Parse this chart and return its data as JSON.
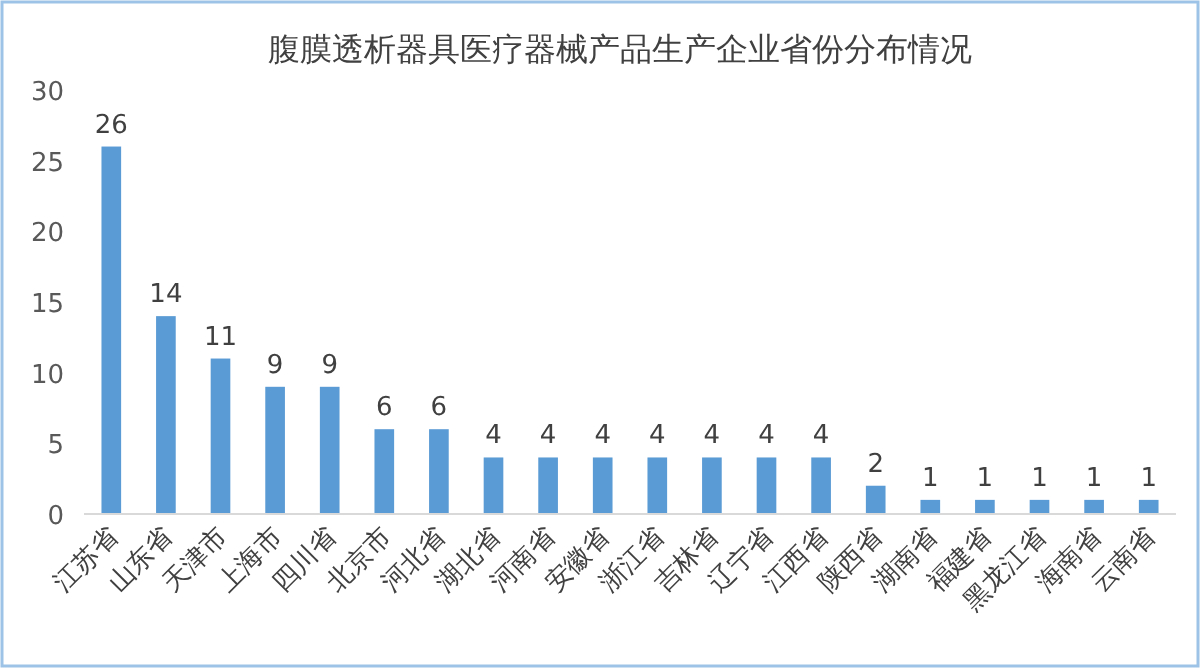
{
  "chart_data": {
    "type": "bar",
    "title": "腹膜透析器具医疗器械产品生产企业省份分布情况",
    "categories": [
      "江苏省",
      "山东省",
      "天津市",
      "上海市",
      "四川省",
      "北京市",
      "河北省",
      "湖北省",
      "河南省",
      "安徽省",
      "浙江省",
      "吉林省",
      "辽宁省",
      "江西省",
      "陕西省",
      "湖南省",
      "福建省",
      "黑龙江省",
      "海南省",
      "云南省"
    ],
    "values": [
      26,
      14,
      11,
      9,
      9,
      6,
      6,
      4,
      4,
      4,
      4,
      4,
      4,
      4,
      2,
      1,
      1,
      1,
      1,
      1
    ],
    "color": "#5b9bd5",
    "ylim": [
      0,
      30
    ],
    "yticks": [
      0,
      5,
      10,
      15,
      20,
      25,
      30
    ],
    "data_labels": true
  }
}
